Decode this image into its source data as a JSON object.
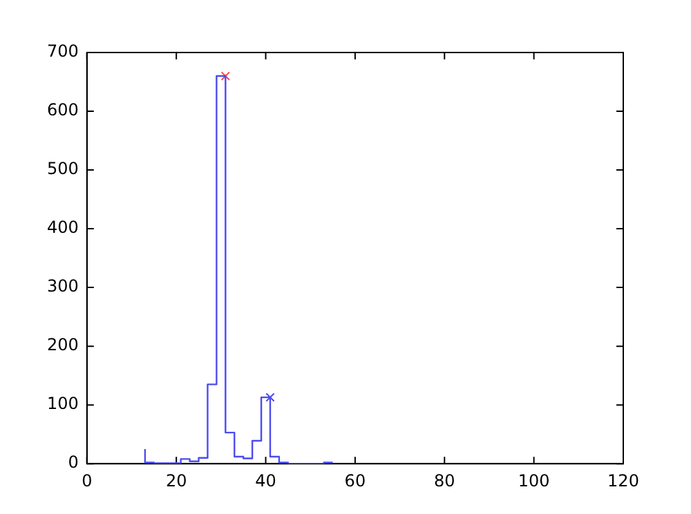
{
  "chart_data": {
    "type": "step",
    "xlim": [
      0,
      120
    ],
    "xticks": [
      0,
      20,
      40,
      60,
      80,
      100,
      120
    ],
    "ylim": [
      0,
      700
    ],
    "yticks": [
      0,
      100,
      200,
      300,
      400,
      500,
      600,
      700
    ],
    "grid": false,
    "legend": false,
    "series": [
      {
        "color": "#4b4bf0",
        "x": [
          13,
          15,
          17,
          19,
          21,
          23,
          25,
          27,
          29,
          31,
          33,
          35,
          37,
          39,
          41,
          43,
          45,
          47,
          49,
          51,
          53,
          55
        ],
        "values": [
          25,
          2,
          1,
          1,
          1,
          8,
          4,
          10,
          135,
          660,
          53,
          12,
          9,
          39,
          113,
          12,
          2,
          0,
          0,
          0,
          0,
          2
        ]
      },
      {
        "type": "scatter",
        "marker": "cross",
        "color": "#ff4444",
        "x": [
          31
        ],
        "values": [
          660
        ]
      },
      {
        "type": "scatter",
        "marker": "cross",
        "color": "#4b4bf0",
        "x": [
          41
        ],
        "values": [
          113
        ]
      }
    ]
  }
}
